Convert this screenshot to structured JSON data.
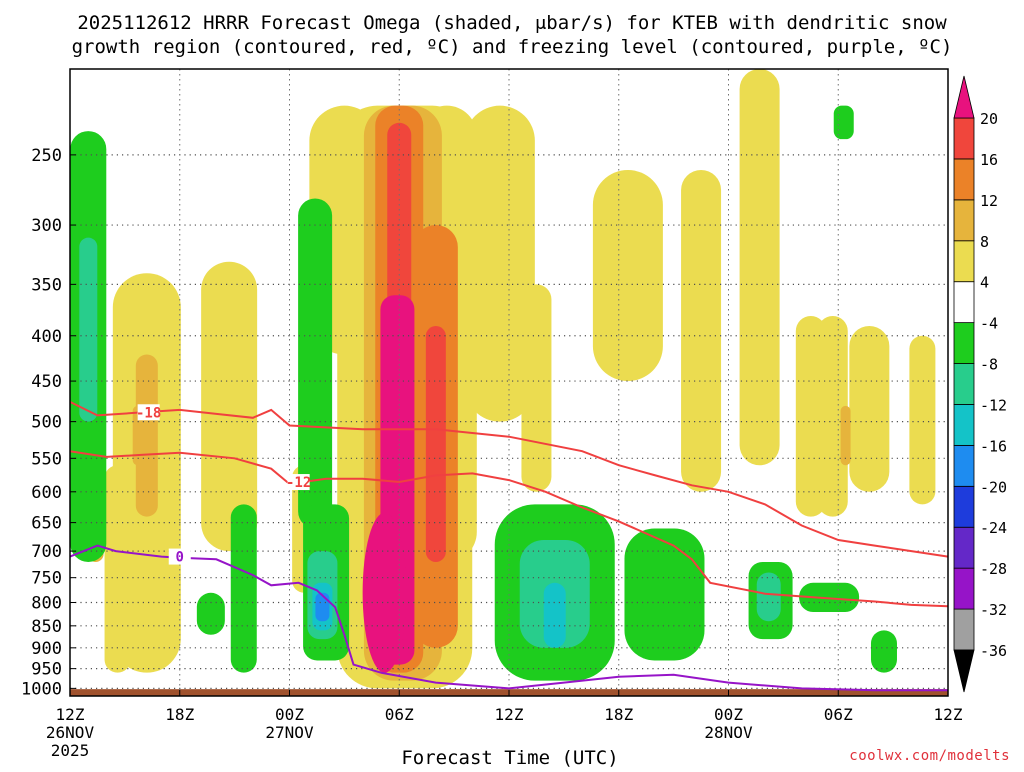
{
  "chart_data": {
    "type": "time-height-cross-section",
    "title_line1": "2025112612 HRRR Forecast Omega (shaded, μbar/s) for KTEB with dendritic snow",
    "title_line2": "growth region (contoured, red, ºC) and freezing level (contoured, purple, ºC)",
    "xlabel": "Forecast Time (UTC)",
    "credit": "coolwx.com/modelts",
    "x_range_hours": [
      0,
      48
    ],
    "x_ticks": [
      {
        "hour": 0,
        "label": "12Z",
        "date": "26NOV",
        "year": "2025"
      },
      {
        "hour": 6,
        "label": "18Z"
      },
      {
        "hour": 12,
        "label": "00Z",
        "date": "27NOV"
      },
      {
        "hour": 18,
        "label": "06Z"
      },
      {
        "hour": 24,
        "label": "12Z"
      },
      {
        "hour": 30,
        "label": "18Z"
      },
      {
        "hour": 36,
        "label": "00Z",
        "date": "28NOV"
      },
      {
        "hour": 42,
        "label": "06Z"
      },
      {
        "hour": 48,
        "label": "12Z"
      }
    ],
    "pressure_top_hPa": 200,
    "pressure_bottom_hPa": 1020,
    "y_ticks_hPa": [
      250,
      300,
      350,
      400,
      450,
      500,
      550,
      600,
      650,
      700,
      750,
      800,
      850,
      900,
      950,
      1000
    ],
    "colorbar": {
      "levels": [
        -36,
        -32,
        -28,
        -24,
        -20,
        -16,
        -12,
        -8,
        -4,
        4,
        8,
        12,
        16,
        20
      ],
      "labels": [
        "20",
        "16",
        "12",
        "8",
        "4",
        "-4",
        "-8",
        "-12",
        "-16",
        "-20",
        "-24",
        "-28",
        "-32",
        "-36"
      ],
      "colors": {
        "above_20": "#e8127e",
        "16_20": "#f0463c",
        "12_16": "#eb8228",
        "8_12": "#e6b43c",
        "4_8": "#ebdc50",
        "-4_4": "#ffffff",
        "-8_-4": "#1ecd1e",
        "-12_-8": "#28cd8c",
        "-16_-12": "#14c3c8",
        "-20_-16": "#1e8cf0",
        "-24_-20": "#1e3cdc",
        "-28_-24": "#6428c8",
        "-32_-28": "#9614c8",
        "-36_-32": "#a0a0a0",
        "below_-36": "#000000"
      }
    },
    "ground_color": "#a0522d",
    "isotherm_contours": [
      {
        "name": "-18C",
        "label": "-18",
        "color": "#f04040",
        "points": [
          [
            0,
            475
          ],
          [
            1.5,
            492
          ],
          [
            4,
            488
          ],
          [
            6,
            485
          ],
          [
            8,
            490
          ],
          [
            10,
            495
          ],
          [
            11,
            485
          ],
          [
            12,
            505
          ],
          [
            16,
            510
          ],
          [
            20,
            510
          ],
          [
            24,
            520
          ],
          [
            28,
            540
          ],
          [
            30,
            560
          ],
          [
            32,
            575
          ],
          [
            34,
            590
          ],
          [
            36,
            600
          ],
          [
            38,
            620
          ],
          [
            40,
            655
          ],
          [
            42,
            680
          ],
          [
            44,
            690
          ],
          [
            46,
            700
          ],
          [
            48,
            710
          ]
        ],
        "label_at": [
          4.3,
          488
        ]
      },
      {
        "name": "-12C",
        "label": "-12",
        "color": "#f04040",
        "points": [
          [
            0,
            540
          ],
          [
            2,
            548
          ],
          [
            4,
            545
          ],
          [
            6,
            542
          ],
          [
            9,
            550
          ],
          [
            11,
            565
          ],
          [
            12,
            588
          ],
          [
            14,
            580
          ],
          [
            16,
            580
          ],
          [
            18,
            585
          ],
          [
            20,
            575
          ],
          [
            22,
            572
          ],
          [
            24,
            582
          ],
          [
            26,
            600
          ],
          [
            28,
            625
          ],
          [
            30,
            648
          ],
          [
            33,
            690
          ],
          [
            34,
            715
          ],
          [
            35,
            760
          ],
          [
            38,
            782
          ],
          [
            41,
            790
          ],
          [
            44,
            798
          ],
          [
            46,
            805
          ],
          [
            48,
            808
          ]
        ],
        "label_at": [
          12.5,
          585
        ]
      },
      {
        "name": "0C freezing level",
        "label": "0",
        "color": "#9614c8",
        "points": [
          [
            0,
            710
          ],
          [
            1.5,
            690
          ],
          [
            2.5,
            700
          ],
          [
            5,
            710
          ],
          [
            6,
            712
          ],
          [
            8,
            715
          ],
          [
            10,
            745
          ],
          [
            11,
            765
          ],
          [
            12.5,
            760
          ],
          [
            13.5,
            775
          ],
          [
            14.5,
            810
          ],
          [
            15,
            870
          ],
          [
            15.5,
            940
          ],
          [
            17,
            960
          ],
          [
            20,
            985
          ],
          [
            24,
            1000
          ],
          [
            27,
            985
          ],
          [
            30,
            970
          ],
          [
            33,
            965
          ],
          [
            36,
            985
          ],
          [
            40,
            1000
          ],
          [
            44,
            1005
          ],
          [
            48,
            1005
          ]
        ],
        "label_at": [
          6,
          710
        ]
      }
    ],
    "omega_regions_note": "Shaded omega (μbar/s): strong negative values (green/cyan/blue) low levels; strong positive values (yellow/orange/red/magenta) in a vertical column between 04Z and 10Z 27NOV."
  }
}
